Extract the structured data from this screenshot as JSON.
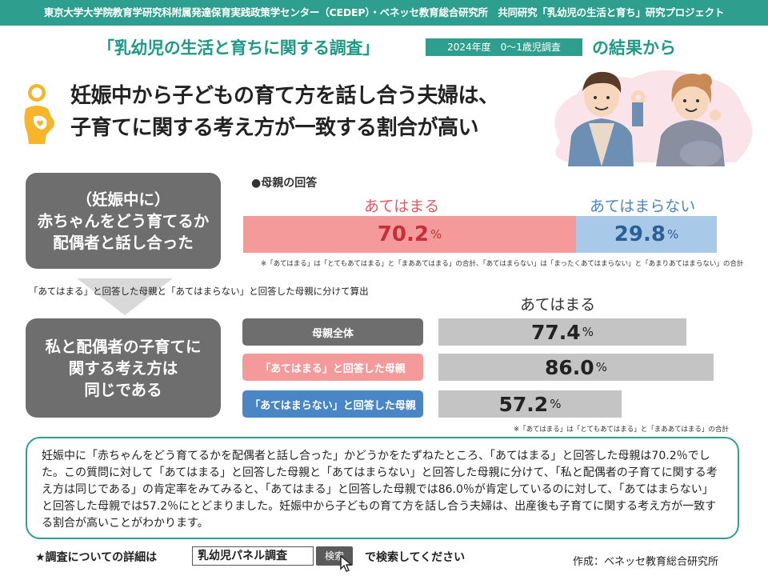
{
  "header": {
    "banner": "東京大学大学院教育学研究科附属発達保育実践政策学センター（CEDEP）・ベネッセ教育総合研究所　共同研究「乳幼児の生活と育ち」研究プロジェクト",
    "survey_title": "「乳幼児の生活と育ちに関する調査」",
    "year_badge": "2024年度　0～1歳児調査",
    "survey_suffix": "の結果から"
  },
  "headline": {
    "line1": "妊娠中から子どもの育て方を話し合う夫婦は、",
    "line2": "子育てに関する考え方が一致する割合が高い"
  },
  "question_box": {
    "lines": [
      "（妊娠中に）",
      "赤ちゃんをどう育てるか",
      "配偶者と話し合った"
    ]
  },
  "calc_note": "「あてはまる」と回答した母親と「あてはまらない」と回答した母親に分けて算出",
  "outcome_box": {
    "lines": [
      "私と配偶者の子育てに",
      "関する考え方は",
      "同じである"
    ]
  },
  "chart_data": [
    {
      "type": "bar",
      "orientation": "horizontal-stacked",
      "title": "●母親の回答",
      "categories": [
        "あてはまる",
        "あてはまらない"
      ],
      "values": [
        70.2,
        29.8
      ],
      "value_labels": [
        "70.2",
        "29.8"
      ],
      "unit": "%",
      "colors": [
        "#f49a9b",
        "#a9c9e9"
      ],
      "note": "※「あてはまる」は「とてもあてはまる」と「まああてはまる」の合計、「あてはまらない」は「まったくあてはまらない」と「あまりあてはまらない」の合計"
    },
    {
      "type": "bar",
      "orientation": "horizontal",
      "title": "あてはまる",
      "categories": [
        "母親全体",
        "「あてはまる」と回答した母親",
        "「あてはまらない」と回答した母親"
      ],
      "values": [
        77.4,
        86.0,
        57.2
      ],
      "value_labels": [
        "77.4",
        "86.0",
        "57.2"
      ],
      "unit": "%",
      "label_colors": [
        "#6e6e6e",
        "#f49a9b",
        "#4a86c5"
      ],
      "bar_color": "#c4c4c4",
      "note": "※「あてはまる」は「とてもあてはまる」と「まああてはまる」の合計"
    }
  ],
  "summary": "妊娠中に「赤ちゃんをどう育てるかを配偶者と話し合った」かどうかをたずねたところ、「あてはまる」と回答した母親は70.2％でした。この質問に対して「あてはまる」と回答した母親と「あてはまらない」と回答した母親に分けて、「私と配偶者の子育てに関する考え方は同じである」の肯定率をみてみると、「あてはまる」と回答した母親では86.0％が肯定しているのに対して、「あてはまらない」と回答した母親では57.2％にとどまりました。妊娠中から子どもの育て方を話し合う夫婦は、出産後も子育てに関する考え方が一致する割合が高いことがわかります。",
  "footer": {
    "lead": "★調査についての詳細は",
    "search_value": "乳幼児パネル調査",
    "search_button": "検索",
    "tail": "で検索してください",
    "author": "作成：ベネッセ教育総合研究所"
  },
  "icons": [
    "pregnant-woman-icon",
    "couple-illustration",
    "mouse-cursor-icon"
  ],
  "colors": {
    "accent": "#2e9f8f",
    "yes": "#f49a9b",
    "no": "#a9c9e9",
    "box": "#6e6e6e"
  }
}
